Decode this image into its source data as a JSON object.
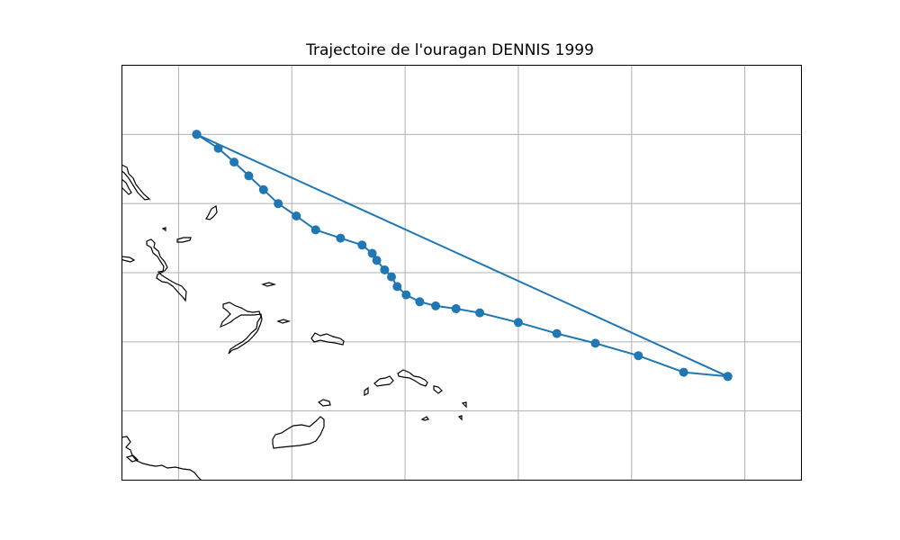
{
  "chart_data": {
    "type": "line",
    "title": "Trajectoire de l'ouragan DENNIS 1999",
    "projection": "PlateCarree",
    "xlim": [
      -80,
      -20
    ],
    "ylim": [
      5,
      35
    ],
    "grid": true,
    "grid_lon": [
      -75,
      -65,
      -55,
      -45,
      -35,
      -25
    ],
    "grid_lat": [
      30,
      25,
      20,
      15,
      10
    ],
    "series": [
      {
        "marker": "circle",
        "color": "#1f77b4",
        "lon": [
          -73.4,
          -71.5,
          -70.1,
          -68.8,
          -67.5,
          -66.2,
          -64.6,
          -62.9,
          -60.7,
          -58.8,
          -57.9,
          -57.5,
          -56.8,
          -56.2,
          -55.7,
          -54.9,
          -53.7,
          -52.3,
          -50.5,
          -48.4,
          -45.0,
          -41.6,
          -38.2,
          -34.4,
          -30.4,
          -26.5,
          -73.4,
          -26.5
        ],
        "lat": [
          30.0,
          29.0,
          28.0,
          27.0,
          26.0,
          25.0,
          24.1,
          23.1,
          22.5,
          22.0,
          21.4,
          20.9,
          20.2,
          19.7,
          19.0,
          18.4,
          17.9,
          17.6,
          17.4,
          17.1,
          16.4,
          15.6,
          14.9,
          14.0,
          12.8,
          12.5,
          30.0,
          12.5
        ]
      }
    ]
  },
  "colors": {
    "track": "#1f77b4",
    "coast": "#000000",
    "grid": "#b0b0b0"
  }
}
